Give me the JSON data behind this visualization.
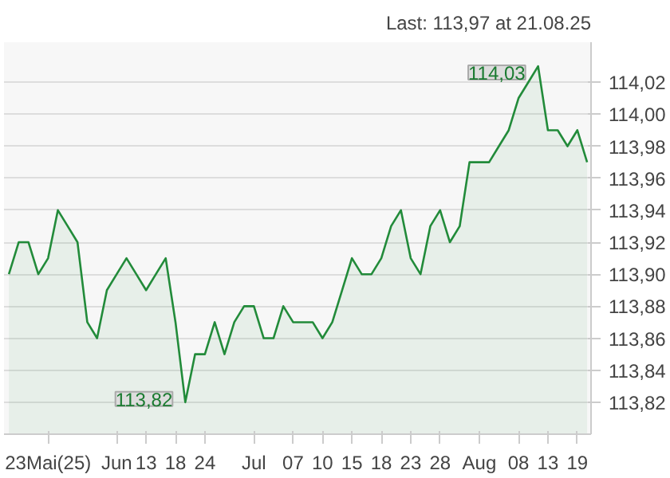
{
  "chart_data": {
    "type": "area",
    "subtitle": "Last: 113,97 at 21.08.25",
    "categories": [
      null,
      null,
      null,
      null,
      "23Mai(25)",
      null,
      null,
      null,
      null,
      null,
      null,
      "Jun",
      null,
      null,
      "13",
      null,
      null,
      "18",
      null,
      null,
      "24",
      null,
      null,
      null,
      null,
      "Jul",
      null,
      null,
      null,
      "07",
      null,
      null,
      "10",
      null,
      null,
      "15",
      null,
      null,
      "18",
      null,
      null,
      "23",
      null,
      null,
      "28",
      null,
      null,
      null,
      "Aug",
      null,
      null,
      null,
      "08",
      null,
      null,
      "13",
      null,
      null,
      "19",
      null
    ],
    "values": [
      113.9,
      113.92,
      113.92,
      113.9,
      113.91,
      113.94,
      113.93,
      113.92,
      113.87,
      113.86,
      113.89,
      113.9,
      113.91,
      113.9,
      113.89,
      113.9,
      113.91,
      113.87,
      113.82,
      113.85,
      113.85,
      113.87,
      113.85,
      113.87,
      113.88,
      113.88,
      113.86,
      113.86,
      113.88,
      113.87,
      113.87,
      113.87,
      113.86,
      113.87,
      113.89,
      113.91,
      113.9,
      113.9,
      113.91,
      113.93,
      113.94,
      113.91,
      113.9,
      113.93,
      113.94,
      113.92,
      113.93,
      113.97,
      113.97,
      113.97,
      113.98,
      113.99,
      114.01,
      114.02,
      114.03,
      113.99,
      113.99,
      113.98,
      113.99,
      113.97
    ],
    "value_labels": [
      null,
      null,
      null,
      null,
      null,
      null,
      null,
      null,
      null,
      null,
      null,
      null,
      null,
      null,
      null,
      null,
      null,
      null,
      "113,82",
      null,
      null,
      null,
      null,
      null,
      null,
      null,
      null,
      null,
      null,
      null,
      null,
      null,
      null,
      null,
      null,
      null,
      null,
      null,
      null,
      null,
      null,
      null,
      null,
      null,
      null,
      null,
      null,
      null,
      null,
      null,
      null,
      null,
      null,
      null,
      "114,03",
      null,
      null,
      null,
      null,
      null
    ],
    "color": "#228b3a",
    "ylim": [
      113.8,
      114.045
    ],
    "yticks": [
      {
        "value": 113.82,
        "label": "113,82"
      },
      {
        "value": 113.84,
        "label": "113,84"
      },
      {
        "value": 113.86,
        "label": "113,86"
      },
      {
        "value": 113.88,
        "label": "113,88"
      },
      {
        "value": 113.9,
        "label": "113,90"
      },
      {
        "value": 113.92,
        "label": "113,92"
      },
      {
        "value": 113.94,
        "label": "113,94"
      },
      {
        "value": 113.96,
        "label": "113,96"
      },
      {
        "value": 113.98,
        "label": "113,98"
      },
      {
        "value": 114.0,
        "label": "114,00"
      },
      {
        "value": 114.02,
        "label": "114,02"
      }
    ],
    "grid": "y",
    "marker": "none",
    "line_style": "solid"
  }
}
